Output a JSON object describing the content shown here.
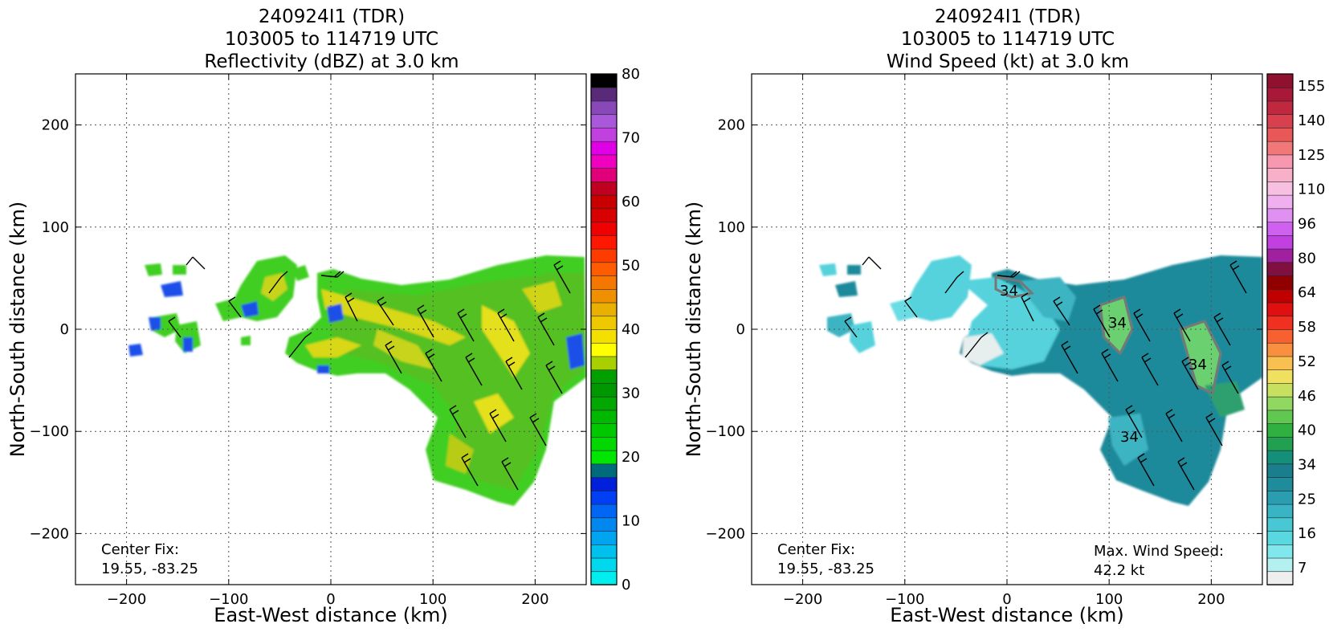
{
  "chart_data": [
    {
      "type": "heatmap",
      "title": [
        "240924I1 (TDR)",
        "103005 to 114719 UTC",
        "Reflectivity (dBZ) at 3.0 km"
      ],
      "xlabel": "East-West distance (km)",
      "ylabel": "North-South distance (km)",
      "xlim": [
        -250,
        250
      ],
      "ylim": [
        -250,
        250
      ],
      "xticks": [
        -200,
        -100,
        0,
        100,
        200
      ],
      "yticks": [
        -200,
        -100,
        0,
        100,
        200
      ],
      "grid": true,
      "colorbar": {
        "min": 0,
        "max": 80,
        "step": 2.5,
        "labels": [
          0,
          10,
          20,
          30,
          40,
          50,
          60,
          70,
          80
        ],
        "colors": [
          "#00eeee",
          "#00d8ee",
          "#00c0ee",
          "#00a4f0",
          "#0088f0",
          "#0066f4",
          "#0040f4",
          "#0020dc",
          "#006b7b",
          "#00e600",
          "#00d800",
          "#00c800",
          "#00b800",
          "#00a800",
          "#009800",
          "#00a000",
          "#a8d000",
          "#ffff00",
          "#f4e000",
          "#eec800",
          "#e8b000",
          "#f09000",
          "#f47800",
          "#ff5c00",
          "#ff3c00",
          "#ff1800",
          "#f00000",
          "#d80000",
          "#c80000",
          "#c00020",
          "#e0007a",
          "#f000c0",
          "#e000e8",
          "#c040e0",
          "#a858d8",
          "#8848b8",
          "#5a2a7a",
          "#000000"
        ]
      },
      "annotation": [
        "Center Fix:",
        "19.55, -83.25"
      ]
    },
    {
      "type": "heatmap",
      "title": [
        "240924I1 (TDR)",
        "103005 to 114719 UTC",
        "Wind Speed (kt) at 3.0 km"
      ],
      "xlabel": "East-West distance (km)",
      "ylabel": "North-South distance (km)",
      "xlim": [
        -250,
        250
      ],
      "ylim": [
        -250,
        250
      ],
      "xticks": [
        -200,
        -100,
        0,
        100,
        200
      ],
      "yticks": [
        -200,
        -100,
        0,
        100,
        200
      ],
      "grid": true,
      "contour_label": "34",
      "colorbar": {
        "labels": [
          7,
          16,
          25,
          34,
          40,
          46,
          52,
          58,
          64,
          80,
          96,
          110,
          125,
          140,
          155
        ],
        "colors": [
          "#eeeeee",
          "#b4f0f0",
          "#80e8ec",
          "#5ad8e0",
          "#48c8d4",
          "#38b4c4",
          "#2a9eb0",
          "#1f8c9c",
          "#1a7e8c",
          "#14907a",
          "#20a050",
          "#30b040",
          "#60c850",
          "#90d860",
          "#c8e060",
          "#f0e060",
          "#f8c050",
          "#f89040",
          "#f86030",
          "#f03020",
          "#e01010",
          "#c00000",
          "#900000",
          "#801040",
          "#a020a0",
          "#c040e0",
          "#d060f0",
          "#e090f0",
          "#f0b0f0",
          "#f8c0e0",
          "#f8b0c8",
          "#f898b0",
          "#f07878",
          "#e85858",
          "#d84050",
          "#c02840",
          "#a81838",
          "#901030"
        ]
      },
      "annotation": [
        "Center Fix:",
        "19.55, -83.25"
      ],
      "max_wind": [
        "Max. Wind Speed:",
        "42.2 kt"
      ]
    }
  ]
}
